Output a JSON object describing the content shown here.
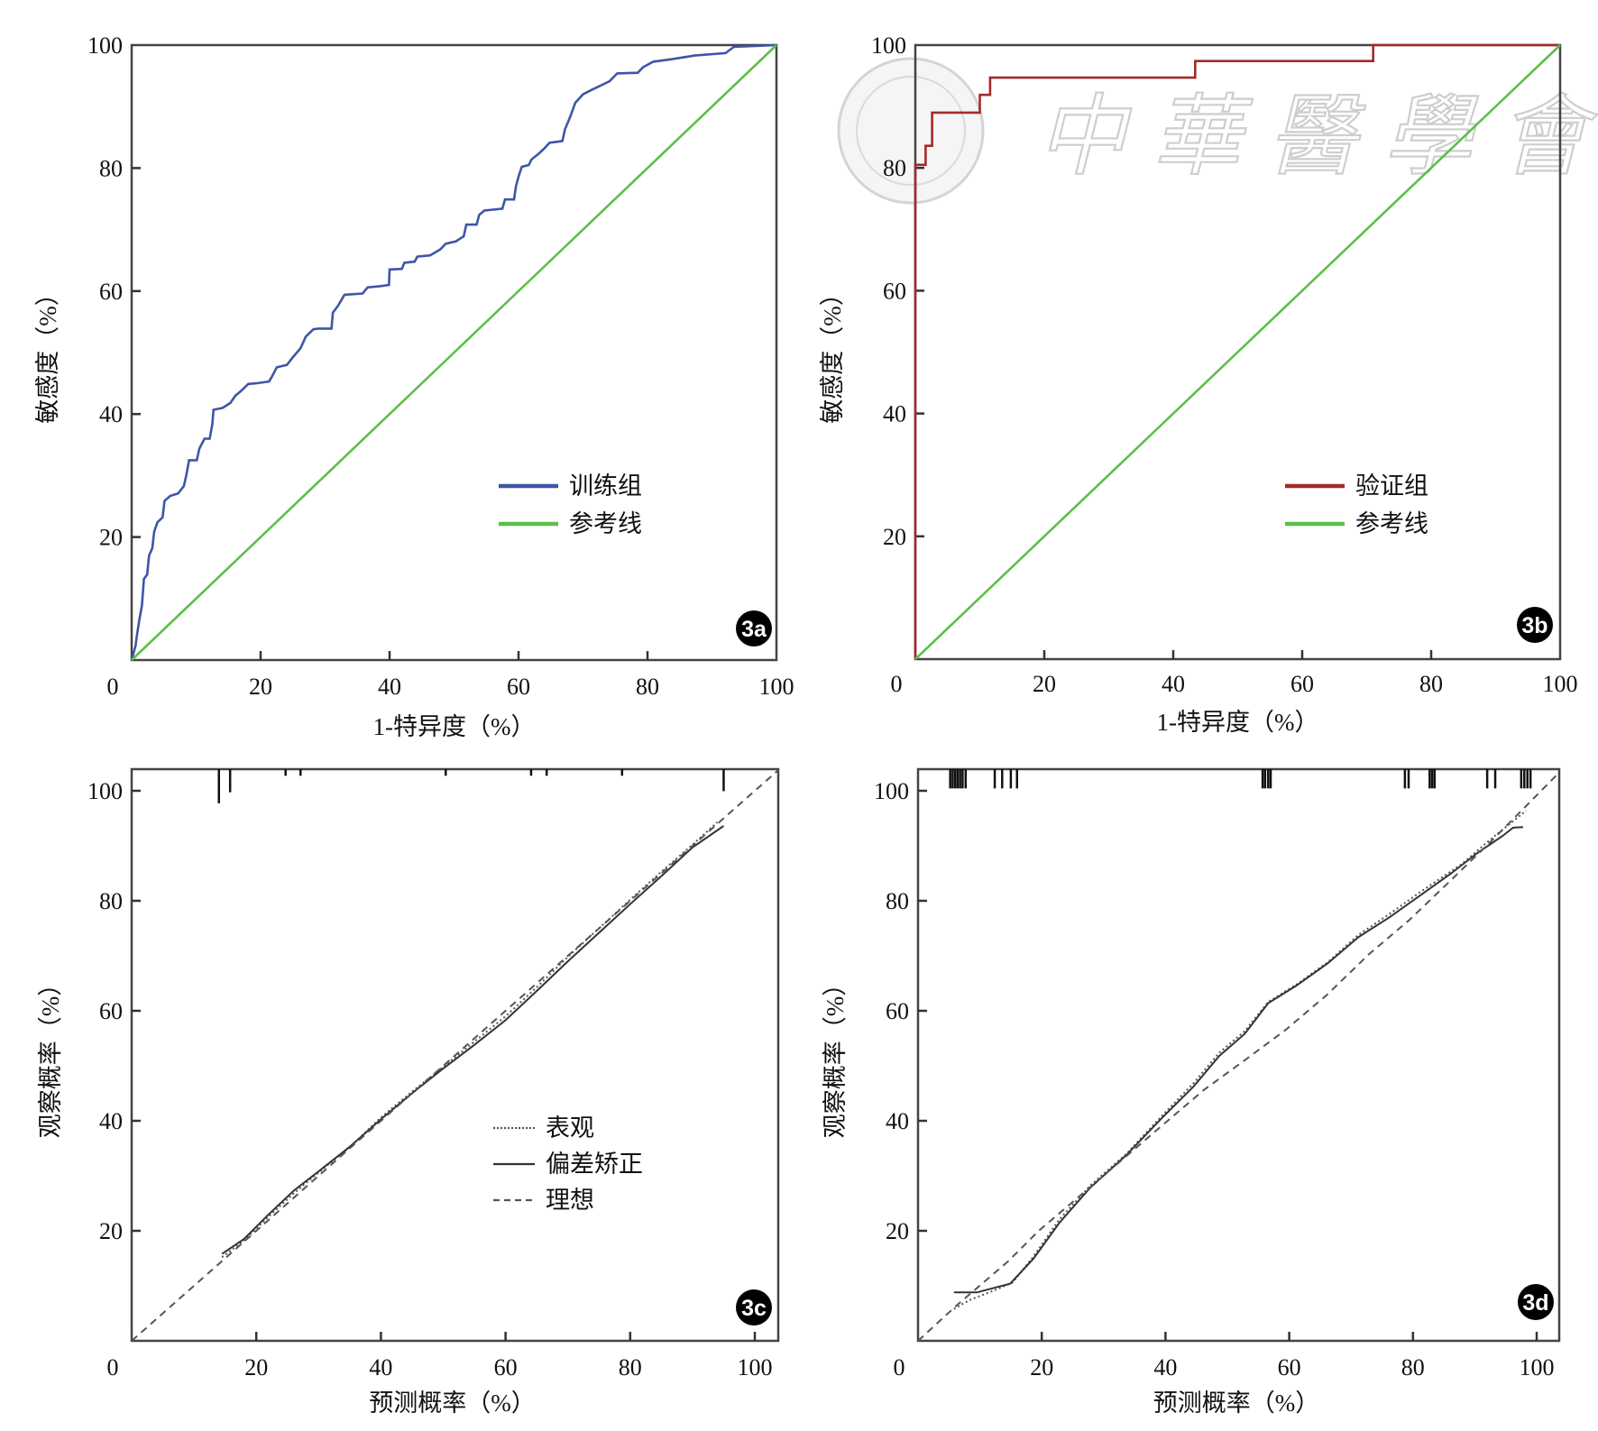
{
  "chart_data": [
    {
      "id": "3a",
      "type": "line",
      "badge": "3a",
      "xlabel": "1-特异度（%）",
      "ylabel": "敏感度（%）",
      "xlim": [
        0,
        100
      ],
      "ylim": [
        0,
        100
      ],
      "x_ticks": [
        "0",
        "20",
        "40",
        "60",
        "80",
        "100"
      ],
      "y_ticks": [
        "20",
        "40",
        "60",
        "80",
        "100"
      ],
      "grid": false,
      "legend_position": "bottom-right",
      "series": [
        {
          "name": "训练组",
          "style": "solid",
          "color": "#3f55a8",
          "step": false,
          "x": [
            0,
            0.6,
            0.8,
            1.2,
            1.6,
            1.9,
            2.4,
            2.7,
            3.2,
            3.5,
            4.0,
            4.8,
            5.1,
            6.0,
            7.2,
            8.1,
            8.5,
            8.9,
            10.1,
            10.5,
            11.3,
            12.1,
            12.5,
            12.7,
            14.1,
            15.3,
            16.1,
            16.9,
            18.1,
            19.3,
            21.3,
            21.7,
            22.5,
            24.1,
            24.9,
            26.2,
            27.0,
            28.2,
            29.0,
            31.0,
            31.2,
            32.0,
            33.0,
            35.8,
            36.6,
            38.6,
            39.9,
            40.0,
            41.9,
            42.3,
            43.9,
            44.3,
            46.3,
            47.9,
            48.7,
            50.3,
            51.5,
            51.9,
            53.5,
            53.9,
            54.7,
            57.5,
            57.9,
            59.3,
            59.6,
            60.0,
            60.5,
            61.6,
            62.0,
            63.2,
            64.0,
            64.8,
            66.8,
            67.2,
            68.0,
            68.8,
            70.0,
            71.3,
            72.5,
            74.1,
            75.3,
            78.5,
            79.3,
            80.9,
            83.7,
            87.3,
            92.1,
            93.4,
            100
          ],
          "y": [
            0,
            2.3,
            3.9,
            6.6,
            8.9,
            13.2,
            13.9,
            17.0,
            18.2,
            20.9,
            22.4,
            23.2,
            25.9,
            26.7,
            27.1,
            28.3,
            30.2,
            32.5,
            32.5,
            34.4,
            36.0,
            36.0,
            38.3,
            40.7,
            41.0,
            41.8,
            43.0,
            43.7,
            44.9,
            45.0,
            45.3,
            46.0,
            47.6,
            48.0,
            49.1,
            50.7,
            52.6,
            53.8,
            53.9,
            53.9,
            56.5,
            57.6,
            59.4,
            59.6,
            60.6,
            60.8,
            61.0,
            63.5,
            63.6,
            64.6,
            64.8,
            65.6,
            65.8,
            66.8,
            67.7,
            68.1,
            68.9,
            70.8,
            70.8,
            72.4,
            73.1,
            73.4,
            74.9,
            74.9,
            77.0,
            78.6,
            80.2,
            80.5,
            81.4,
            82.4,
            83.2,
            84.1,
            84.4,
            86.3,
            88.3,
            90.6,
            92.0,
            92.7,
            93.3,
            94.1,
            95.4,
            95.5,
            96.4,
            97.3,
            97.7,
            98.3,
            98.7,
            99.7,
            100
          ]
        },
        {
          "name": "参考线",
          "style": "solid",
          "color": "#5cbf4a",
          "x": [
            0,
            100
          ],
          "y": [
            0,
            100
          ]
        }
      ]
    },
    {
      "id": "3b",
      "type": "line",
      "badge": "3b",
      "xlabel": "1-特异度（%）",
      "ylabel": "敏感度（%）",
      "xlim": [
        0,
        100
      ],
      "ylim": [
        0,
        100
      ],
      "x_ticks": [
        "0",
        "20",
        "40",
        "60",
        "80",
        "100"
      ],
      "y_ticks": [
        "20",
        "40",
        "60",
        "80",
        "100"
      ],
      "grid": false,
      "legend_position": "bottom-right",
      "watermark": "中華醫學會",
      "series": [
        {
          "name": "验证组",
          "style": "solid",
          "color": "#a32a2a",
          "x": [
            0,
            0,
            1.6,
            1.6,
            2.6,
            2.6,
            10.0,
            10.0,
            11.6,
            11.6,
            43.4,
            43.4,
            71.0,
            71.0,
            100
          ],
          "y": [
            0,
            80.5,
            80.5,
            83.6,
            83.6,
            89.0,
            89.0,
            91.9,
            91.9,
            94.7,
            94.7,
            97.4,
            97.4,
            100,
            100
          ]
        },
        {
          "name": "参考线",
          "style": "solid",
          "color": "#5cbf4a",
          "x": [
            0,
            100
          ],
          "y": [
            0,
            100
          ]
        }
      ]
    },
    {
      "id": "3c",
      "type": "line",
      "badge": "3c",
      "xlabel": "预测概率（%）",
      "ylabel": "观察概率（%）",
      "xlim": [
        0,
        103.8
      ],
      "ylim": [
        0,
        103.9
      ],
      "x_ticks": [
        "0",
        "20",
        "40",
        "60",
        "80",
        "100"
      ],
      "y_ticks": [
        "20",
        "40",
        "60",
        "80",
        "100"
      ],
      "grid": false,
      "legend_position": "center-right",
      "rug": [
        14.0,
        15.8,
        24.7,
        27.1,
        50.4,
        64.1,
        66.6,
        78.7,
        95.0
      ],
      "rug_lengths": [
        6.2,
        4.2,
        1.2,
        1.2,
        1.2,
        1.2,
        1.2,
        1.2,
        4.0
      ],
      "series": [
        {
          "name": "表观",
          "style": "dotted",
          "color": "#555555",
          "x": [
            14.5,
            18,
            22,
            26,
            30,
            35,
            40,
            45,
            50,
            55,
            60,
            65,
            70,
            75,
            80,
            85,
            90,
            94
          ],
          "y": [
            15.2,
            18.2,
            22.6,
            26.8,
            30.6,
            35.2,
            40.6,
            45.3,
            49.8,
            54.4,
            59.0,
            64.3,
            69.8,
            75.0,
            80.2,
            85.3,
            90.2,
            94.3
          ]
        },
        {
          "name": "偏差矫正",
          "style": "solid",
          "color": "#333333",
          "x": [
            14.5,
            18,
            22,
            26,
            30,
            35,
            40,
            45,
            50,
            55,
            60,
            65,
            70,
            75,
            80,
            85,
            90,
            95
          ],
          "y": [
            15.8,
            18.5,
            23.0,
            27.3,
            30.8,
            35.3,
            40.3,
            45.0,
            49.5,
            53.8,
            58.3,
            63.6,
            69.0,
            74.2,
            79.4,
            84.5,
            89.7,
            93.6
          ]
        },
        {
          "name": "理想",
          "style": "dashed",
          "color": "#555555",
          "x": [
            0,
            103.8
          ],
          "y": [
            0,
            103.8
          ]
        }
      ]
    },
    {
      "id": "3d",
      "type": "line",
      "badge": "3d",
      "xlabel": "预测概率（%）",
      "ylabel": "观察概率（%）",
      "xlim": [
        0,
        103.7
      ],
      "ylim": [
        0,
        103.9
      ],
      "x_ticks": [
        "0",
        "20",
        "40",
        "60",
        "80",
        "100"
      ],
      "y_ticks": [
        "20",
        "40",
        "60",
        "80",
        "100"
      ],
      "grid": false,
      "rug": [
        5.2,
        5.6,
        6.0,
        6.4,
        6.8,
        7.2,
        7.7,
        12.4,
        13.6,
        15.0,
        16.0,
        55.7,
        56.1,
        56.6,
        57.0,
        78.7,
        79.3,
        82.7,
        83.1,
        83.5,
        92.0,
        93.3,
        97.5,
        98.0,
        98.5,
        99.0
      ],
      "series": [
        {
          "name": "表观",
          "style": "dotted",
          "color": "#555555",
          "x": [
            5.8,
            8.3,
            12.8,
            15.3,
            18.7,
            22.8,
            27.8,
            33.7,
            39.5,
            44.5,
            48.7,
            52.8,
            56.6,
            61.2,
            66.2,
            71.2,
            76.2,
            81.2,
            87.8,
            92.8,
            98.3
          ],
          "y": [
            5.8,
            7.4,
            9.4,
            10.6,
            15.4,
            22.0,
            28.2,
            34.0,
            41.0,
            46.8,
            52.4,
            56.3,
            61.6,
            64.8,
            68.8,
            73.8,
            77.6,
            81.6,
            86.6,
            91.4,
            96.4
          ]
        },
        {
          "name": "偏差矫正",
          "style": "solid",
          "color": "#333333",
          "x": [
            5.8,
            9.5,
            14.9,
            18.7,
            22.8,
            27.8,
            33.7,
            39.5,
            44.5,
            48.7,
            52.8,
            56.6,
            61.2,
            66.2,
            71.2,
            76.2,
            81.2,
            86.2,
            90.3,
            94.5,
            96.2,
            97.8
          ],
          "y": [
            8.8,
            8.8,
            10.4,
            15.0,
            21.4,
            27.8,
            33.8,
            40.6,
            46.2,
            51.8,
            55.8,
            61.4,
            64.6,
            68.6,
            73.4,
            77.0,
            81.0,
            85.0,
            88.6,
            91.8,
            93.3,
            93.4
          ]
        },
        {
          "name": "理想",
          "style": "dashed",
          "color": "#555555",
          "x": [
            0,
            6.2,
            14.5,
            19.5,
            26.2,
            33.7,
            39.5,
            46.2,
            52.8,
            59.5,
            66.2,
            72.8,
            79.5,
            86.2,
            92.8,
            103.7
          ],
          "y": [
            0,
            6.4,
            14.4,
            20.0,
            26.4,
            33.6,
            39.2,
            45.6,
            51.0,
            56.6,
            63.0,
            70.2,
            76.6,
            83.8,
            91.0,
            103.4
          ]
        }
      ]
    }
  ]
}
